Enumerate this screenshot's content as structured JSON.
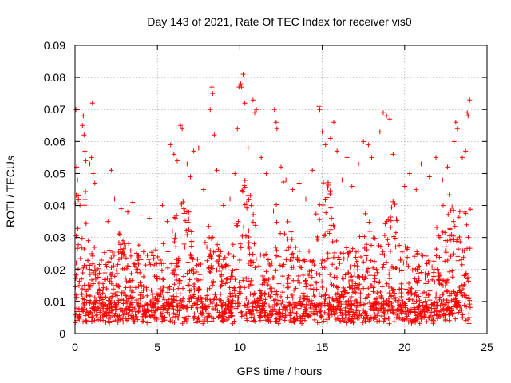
{
  "chart_data": {
    "type": "scatter",
    "title": "Day 143 of 2021, Rate Of TEC Index for receiver vis0",
    "xlabel": "GPS time / hours",
    "ylabel": "ROTI / TECUs",
    "xlim": [
      0,
      25
    ],
    "ylim": [
      0,
      0.09
    ],
    "x_ticks": [
      0,
      5,
      10,
      15,
      20,
      25
    ],
    "y_ticks": [
      0,
      0.01,
      0.02,
      0.03,
      0.04,
      0.05,
      0.06,
      0.07,
      0.08,
      0.09
    ],
    "x_tick_labels": [
      "0",
      "5",
      "10",
      "15",
      "20",
      "25"
    ],
    "y_tick_labels": [
      "0",
      "0.01",
      "0.02",
      "0.03",
      "0.04",
      "0.05",
      "0.06",
      "0.07",
      "0.08",
      "0.09"
    ],
    "grid": true,
    "marker": "plus",
    "series": [
      {
        "name": "ROTI",
        "color": "#ff0000",
        "points": [
          [
            0.05,
            0.07
          ],
          [
            0.1,
            0.052
          ],
          [
            0.15,
            0.048
          ],
          [
            0.2,
            0.043
          ],
          [
            0.3,
            0.04
          ],
          [
            0.45,
            0.065
          ],
          [
            0.5,
            0.068
          ],
          [
            0.55,
            0.062
          ],
          [
            0.6,
            0.057
          ],
          [
            0.65,
            0.054
          ],
          [
            0.9,
            0.053
          ],
          [
            1.0,
            0.055
          ],
          [
            1.05,
            0.072
          ],
          [
            1.1,
            0.05
          ],
          [
            1.2,
            0.047
          ],
          [
            2.0,
            0.035
          ],
          [
            2.2,
            0.051
          ],
          [
            2.4,
            0.042
          ],
          [
            2.8,
            0.039
          ],
          [
            3.2,
            0.038
          ],
          [
            3.5,
            0.041
          ],
          [
            4.0,
            0.037
          ],
          [
            4.5,
            0.036
          ],
          [
            5.3,
            0.04
          ],
          [
            5.6,
            0.035
          ],
          [
            5.8,
            0.059
          ],
          [
            6.0,
            0.056
          ],
          [
            6.2,
            0.054
          ],
          [
            6.4,
            0.065
          ],
          [
            6.5,
            0.064
          ],
          [
            6.8,
            0.053
          ],
          [
            7.0,
            0.049
          ],
          [
            7.2,
            0.057
          ],
          [
            7.5,
            0.058
          ],
          [
            7.8,
            0.045
          ],
          [
            8.2,
            0.07
          ],
          [
            8.3,
            0.077
          ],
          [
            8.35,
            0.075
          ],
          [
            8.45,
            0.062
          ],
          [
            8.6,
            0.051
          ],
          [
            9.0,
            0.04
          ],
          [
            9.4,
            0.042
          ],
          [
            9.7,
            0.05
          ],
          [
            9.85,
            0.064
          ],
          [
            9.95,
            0.077
          ],
          [
            10.05,
            0.078
          ],
          [
            10.1,
            0.077
          ],
          [
            10.2,
            0.081
          ],
          [
            10.3,
            0.072
          ],
          [
            10.5,
            0.058
          ],
          [
            10.8,
            0.073
          ],
          [
            10.9,
            0.069
          ],
          [
            11.0,
            0.07
          ],
          [
            11.3,
            0.055
          ],
          [
            11.6,
            0.05
          ],
          [
            12.1,
            0.07
          ],
          [
            12.2,
            0.066
          ],
          [
            12.25,
            0.064
          ],
          [
            12.5,
            0.052
          ],
          [
            12.8,
            0.048
          ],
          [
            13.2,
            0.045
          ],
          [
            13.6,
            0.047
          ],
          [
            14.0,
            0.042
          ],
          [
            14.4,
            0.051
          ],
          [
            14.8,
            0.071
          ],
          [
            14.85,
            0.07
          ],
          [
            15.0,
            0.063
          ],
          [
            15.2,
            0.059
          ],
          [
            15.5,
            0.061
          ],
          [
            15.7,
            0.066
          ],
          [
            15.9,
            0.057
          ],
          [
            16.2,
            0.048
          ],
          [
            16.5,
            0.055
          ],
          [
            16.8,
            0.046
          ],
          [
            17.2,
            0.053
          ],
          [
            17.5,
            0.06
          ],
          [
            17.8,
            0.059
          ],
          [
            18.0,
            0.055
          ],
          [
            18.5,
            0.063
          ],
          [
            18.7,
            0.069
          ],
          [
            18.9,
            0.068
          ],
          [
            19.1,
            0.067
          ],
          [
            19.3,
            0.056
          ],
          [
            19.6,
            0.048
          ],
          [
            20.0,
            0.046
          ],
          [
            20.3,
            0.05
          ],
          [
            20.7,
            0.045
          ],
          [
            21.0,
            0.053
          ],
          [
            21.5,
            0.049
          ],
          [
            21.9,
            0.055
          ],
          [
            22.3,
            0.048
          ],
          [
            22.6,
            0.052
          ],
          [
            23.0,
            0.06
          ],
          [
            23.1,
            0.066
          ],
          [
            23.2,
            0.064
          ],
          [
            23.5,
            0.055
          ],
          [
            23.7,
            0.057
          ],
          [
            23.8,
            0.069
          ],
          [
            23.85,
            0.068
          ],
          [
            23.95,
            0.073
          ]
        ]
      }
    ]
  }
}
